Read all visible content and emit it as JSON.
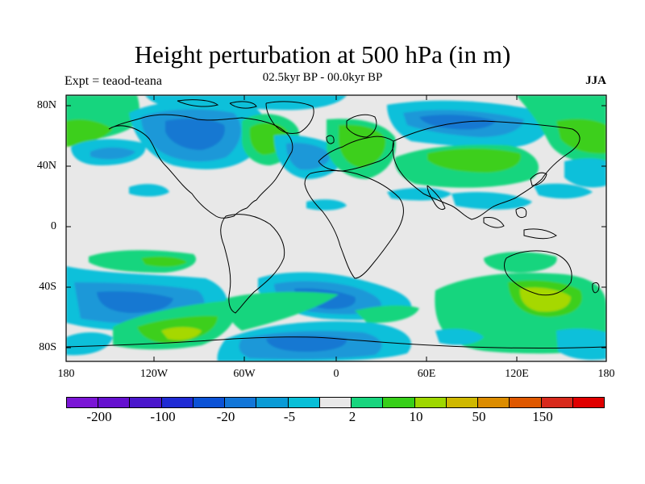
{
  "title": "Height perturbation at 500 hPa (in m)",
  "subtitle_left": "Expt = teaod-teana",
  "subtitle_center": "02.5kyr BP - 00.0kyr BP",
  "subtitle_right": "JJA",
  "map": {
    "lat_ticks": [
      "80N",
      "40N",
      "0",
      "40S",
      "80S"
    ],
    "lon_ticks": [
      "180",
      "120W",
      "60W",
      "0",
      "60E",
      "120E",
      "180"
    ],
    "lon_range": [
      -180,
      180
    ],
    "lat_range": [
      -90,
      90
    ]
  },
  "colorbar": {
    "colors": [
      "#7b16d6",
      "#6510cf",
      "#4a17cc",
      "#1f2bd4",
      "#0b52d6",
      "#1276d8",
      "#0a9bd6",
      "#08bfd8",
      "#e8e8e8",
      "#18d57e",
      "#37cf19",
      "#9ed700",
      "#cfb800",
      "#dc8c00",
      "#df5800",
      "#d82a1c",
      "#e00000"
    ],
    "labels": [
      "-200",
      "-100",
      "-20",
      "-5",
      "2",
      "10",
      "50",
      "150"
    ]
  },
  "colors": {
    "neutral": "#e8e8e8",
    "light_blue": "#0ec0da",
    "mid_blue": "#1b98d8",
    "dark_blue": "#1278d2",
    "green": "#18d57e",
    "bright_green": "#3ccf1a",
    "yellow_green": "#a6d800",
    "coast": "#000000"
  }
}
